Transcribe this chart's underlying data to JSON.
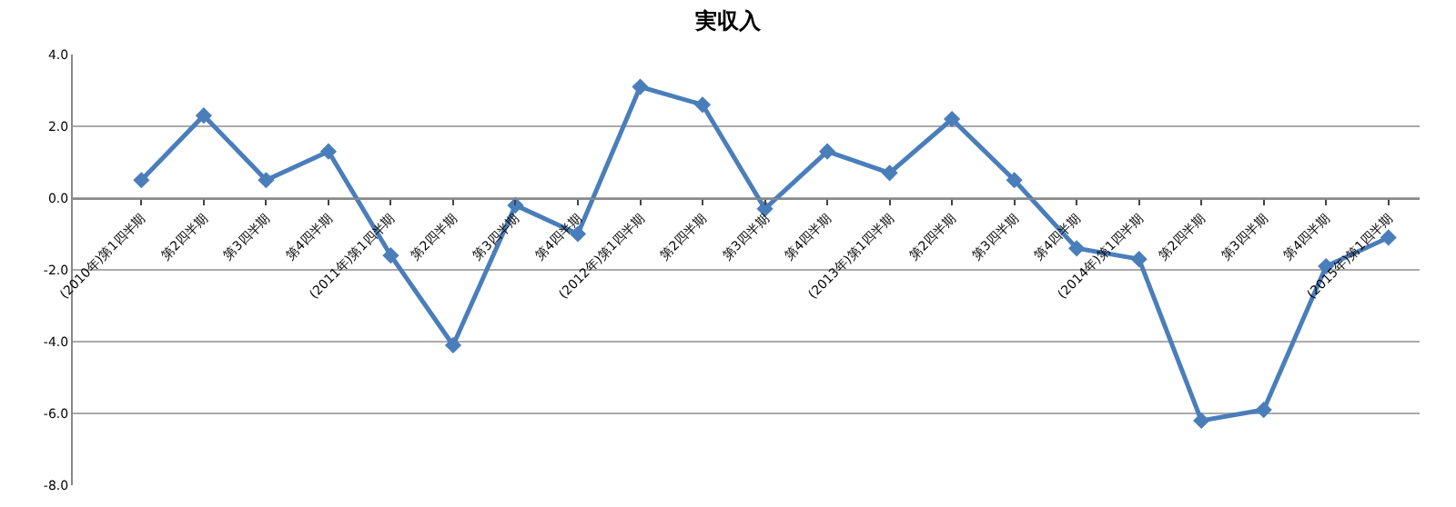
{
  "chart_data": {
    "type": "line",
    "title": "実収入",
    "categories": [
      "(2010年)第1四半期",
      "第2四半期",
      "第3四半期",
      "第4四半期",
      "(2011年)第1四半期",
      "第2四半期",
      "第3四半期",
      "第4四半期",
      "(2012年)第1四半期",
      "第2四半期",
      "第3四半期",
      "第4四半期",
      "(2013年)第1四半期",
      "第2四半期",
      "第3四半期",
      "第4四半期",
      "(2014年)第1四半期",
      "第2四半期",
      "第3四半期",
      "第4四半期",
      "(2015年)第1四半期"
    ],
    "series": [
      {
        "color": "#4a7ebb",
        "values": [
          0.5,
          2.3,
          0.5,
          1.3,
          -1.6,
          -4.1,
          -0.2,
          -1.0,
          3.1,
          2.6,
          -0.3,
          1.3,
          0.7,
          2.2,
          0.5,
          -1.4,
          -1.7,
          -6.2,
          -5.9,
          -1.9,
          -1.1
        ]
      }
    ],
    "ylim": [
      -8,
      4
    ],
    "yticks": [
      {
        "value": -8,
        "label": "-8.0"
      },
      {
        "value": -6,
        "label": "-6.0"
      },
      {
        "value": -4,
        "label": "-4.0"
      },
      {
        "value": -2,
        "label": "-2.0"
      },
      {
        "value": 0,
        "label": "0.0"
      },
      {
        "value": 2,
        "label": "2.0"
      },
      {
        "value": 4,
        "label": "4.0"
      }
    ],
    "grid": "y",
    "marker": "diamond",
    "line_style": "solid"
  }
}
